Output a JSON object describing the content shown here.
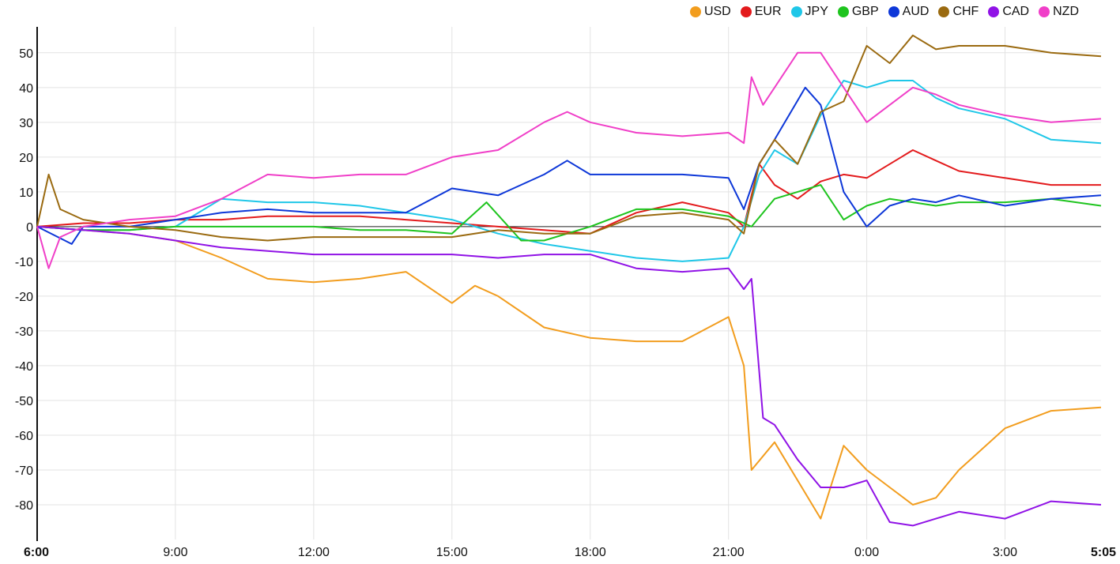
{
  "chart_data": {
    "type": "line",
    "x_ticks": [
      "6:00",
      "9:00",
      "12:00",
      "15:00",
      "18:00",
      "21:00",
      "0:00",
      "3:00",
      "5:05"
    ],
    "x_start_label": "6:00",
    "x_end_label": "5:05",
    "y_ticks": [
      50,
      40,
      30,
      20,
      10,
      0,
      -10,
      -20,
      -30,
      -40,
      -50,
      -60,
      -70,
      -80
    ],
    "ylim": [
      -90,
      57
    ],
    "grid": true,
    "legend_position": "top-right",
    "series": [
      {
        "name": "USD",
        "color": "#f29d1e",
        "x": [
          "6:00",
          "7:00",
          "8:00",
          "9:00",
          "10:00",
          "11:00",
          "12:00",
          "13:00",
          "14:00",
          "15:00",
          "15:30",
          "16:00",
          "17:00",
          "18:00",
          "19:00",
          "20:00",
          "21:00",
          "21:20",
          "21:30",
          "22:00",
          "23:00",
          "23:30",
          "0:00",
          "0:30",
          "1:00",
          "1:30",
          "2:00",
          "3:00",
          "4:00",
          "5:05"
        ],
        "values": [
          0,
          -1,
          -2,
          -4,
          -9,
          -15,
          -16,
          -15,
          -13,
          -22,
          -17,
          -20,
          -29,
          -32,
          -33,
          -33,
          -26,
          -40,
          -70,
          -62,
          -84,
          -63,
          -70,
          -75,
          -80,
          -78,
          -70,
          -58,
          -53,
          -52
        ]
      },
      {
        "name": "EUR",
        "color": "#e31a1c",
        "x": [
          "6:00",
          "7:00",
          "8:00",
          "9:00",
          "10:00",
          "11:00",
          "12:00",
          "13:00",
          "14:00",
          "15:00",
          "16:00",
          "17:00",
          "18:00",
          "19:00",
          "20:00",
          "21:00",
          "21:20",
          "21:40",
          "22:00",
          "22:30",
          "23:00",
          "23:30",
          "0:00",
          "0:30",
          "1:00",
          "1:30",
          "2:00",
          "3:00",
          "4:00",
          "5:05"
        ],
        "values": [
          0,
          1,
          1,
          2,
          2,
          3,
          3,
          3,
          2,
          1,
          0,
          -1,
          -2,
          4,
          7,
          4,
          0,
          18,
          12,
          8,
          13,
          15,
          14,
          18,
          22,
          19,
          16,
          14,
          12,
          12
        ]
      },
      {
        "name": "JPY",
        "color": "#1fc7e8",
        "x": [
          "6:00",
          "7:00",
          "8:00",
          "9:00",
          "10:00",
          "11:00",
          "12:00",
          "13:00",
          "14:00",
          "15:00",
          "16:00",
          "17:00",
          "18:00",
          "19:00",
          "20:00",
          "21:00",
          "21:20",
          "21:40",
          "22:00",
          "22:30",
          "23:00",
          "23:30",
          "0:00",
          "0:30",
          "1:00",
          "1:30",
          "2:00",
          "3:00",
          "4:00",
          "5:05"
        ],
        "values": [
          0,
          -1,
          -1,
          0,
          8,
          7,
          7,
          6,
          4,
          2,
          -2,
          -5,
          -7,
          -9,
          -10,
          -9,
          0,
          15,
          22,
          18,
          32,
          42,
          40,
          42,
          42,
          37,
          34,
          31,
          25,
          24
        ]
      },
      {
        "name": "GBP",
        "color": "#1ec41e",
        "x": [
          "6:00",
          "7:00",
          "8:00",
          "9:00",
          "10:00",
          "11:00",
          "12:00",
          "13:00",
          "14:00",
          "15:00",
          "15:45",
          "16:30",
          "17:00",
          "18:00",
          "19:00",
          "20:00",
          "21:00",
          "21:30",
          "22:00",
          "22:30",
          "23:00",
          "23:30",
          "0:00",
          "0:30",
          "1:00",
          "1:30",
          "2:00",
          "3:00",
          "4:00",
          "5:05"
        ],
        "values": [
          0,
          -1,
          -1,
          0,
          0,
          0,
          0,
          -1,
          -1,
          -2,
          7,
          -4,
          -4,
          0,
          5,
          5,
          3,
          0,
          8,
          10,
          12,
          2,
          6,
          8,
          7,
          6,
          7,
          7,
          8,
          6
        ]
      },
      {
        "name": "AUD",
        "color": "#0d37d8",
        "x": [
          "6:00",
          "6:45",
          "7:00",
          "8:00",
          "9:00",
          "10:00",
          "11:00",
          "12:00",
          "13:00",
          "14:00",
          "15:00",
          "16:00",
          "17:00",
          "17:30",
          "18:00",
          "19:00",
          "20:00",
          "21:00",
          "21:20",
          "21:40",
          "22:00",
          "22:40",
          "23:00",
          "23:30",
          "0:00",
          "0:30",
          "1:00",
          "1:30",
          "2:00",
          "3:00",
          "4:00",
          "5:05"
        ],
        "values": [
          0,
          -5,
          0,
          0,
          2,
          4,
          5,
          4,
          4,
          4,
          11,
          9,
          15,
          19,
          15,
          15,
          15,
          14,
          5,
          18,
          25,
          40,
          35,
          10,
          0,
          6,
          8,
          7,
          9,
          6,
          8,
          9
        ]
      },
      {
        "name": "CHF",
        "color": "#9a6a10",
        "x": [
          "6:00",
          "6:15",
          "6:30",
          "7:00",
          "8:00",
          "9:00",
          "10:00",
          "11:00",
          "12:00",
          "13:00",
          "14:00",
          "15:00",
          "16:00",
          "17:00",
          "18:00",
          "19:00",
          "20:00",
          "21:00",
          "21:20",
          "21:40",
          "22:00",
          "22:30",
          "23:00",
          "23:30",
          "0:00",
          "0:30",
          "1:00",
          "1:30",
          "2:00",
          "3:00",
          "4:00",
          "5:05"
        ],
        "values": [
          0,
          15,
          5,
          2,
          0,
          -1,
          -3,
          -4,
          -3,
          -3,
          -3,
          -3,
          -1,
          -2,
          -2,
          3,
          4,
          2,
          -2,
          18,
          25,
          18,
          33,
          36,
          52,
          47,
          55,
          51,
          52,
          52,
          50,
          49
        ]
      },
      {
        "name": "CAD",
        "color": "#9012e6",
        "x": [
          "6:00",
          "7:00",
          "8:00",
          "9:00",
          "10:00",
          "11:00",
          "12:00",
          "13:00",
          "14:00",
          "15:00",
          "16:00",
          "17:00",
          "18:00",
          "19:00",
          "20:00",
          "21:00",
          "21:20",
          "21:30",
          "21:45",
          "22:00",
          "22:30",
          "23:00",
          "23:30",
          "0:00",
          "0:30",
          "1:00",
          "1:30",
          "2:00",
          "3:00",
          "4:00",
          "5:05"
        ],
        "values": [
          0,
          -1,
          -2,
          -4,
          -6,
          -7,
          -8,
          -8,
          -8,
          -8,
          -9,
          -8,
          -8,
          -12,
          -13,
          -12,
          -18,
          -15,
          -55,
          -57,
          -67,
          -75,
          -75,
          -73,
          -85,
          -86,
          -84,
          -82,
          -84,
          -79,
          -80
        ]
      },
      {
        "name": "NZD",
        "color": "#f03fc8",
        "x": [
          "6:00",
          "6:15",
          "6:30",
          "7:00",
          "8:00",
          "9:00",
          "10:00",
          "11:00",
          "12:00",
          "13:00",
          "14:00",
          "15:00",
          "16:00",
          "17:00",
          "17:30",
          "18:00",
          "19:00",
          "20:00",
          "21:00",
          "21:20",
          "21:30",
          "21:45",
          "22:00",
          "22:30",
          "23:00",
          "23:30",
          "0:00",
          "0:30",
          "1:00",
          "1:30",
          "2:00",
          "3:00",
          "4:00",
          "5:05"
        ],
        "values": [
          0,
          -12,
          -3,
          0,
          2,
          3,
          8,
          15,
          14,
          15,
          15,
          20,
          22,
          30,
          33,
          30,
          27,
          26,
          27,
          24,
          43,
          35,
          40,
          50,
          50,
          40,
          30,
          35,
          40,
          38,
          35,
          32,
          30,
          31
        ]
      }
    ]
  }
}
